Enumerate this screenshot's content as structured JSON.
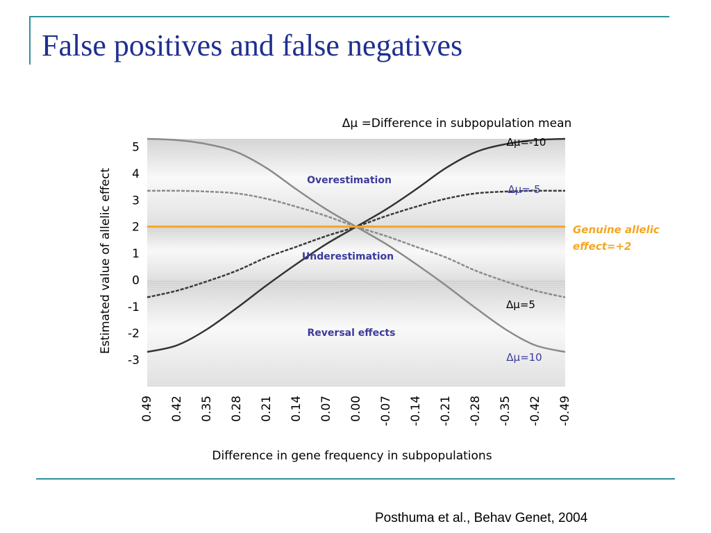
{
  "slide": {
    "title": "False positives and false negatives",
    "citation": "Posthuma et al., Behav Genet, 2004"
  },
  "chart_data": {
    "type": "line",
    "title": "Δμ =Difference in subpopulation mean",
    "xlabel": "Difference in gene frequency in subpopulations",
    "ylabel": "Estimated value of allelic effect",
    "x": [
      0.49,
      0.42,
      0.35,
      0.28,
      0.21,
      0.14,
      0.07,
      0.0,
      -0.07,
      -0.14,
      -0.21,
      -0.28,
      -0.35,
      -0.42,
      -0.49
    ],
    "x_tick_labels": [
      "0.49",
      "0.42",
      "0.35",
      "0.28",
      "0.21",
      "0.14",
      "0.07",
      "0.00",
      "-0.07",
      "-0.14",
      "-0.21",
      "-0.28",
      "-0.35",
      "-0.42",
      "-0.49"
    ],
    "y_ticks": [
      5,
      4,
      3,
      2,
      1,
      0,
      -1,
      -2,
      -3
    ],
    "ylim": [
      -4,
      5.3
    ],
    "grid": false,
    "series": [
      {
        "name": "Δμ=-10",
        "color": "#333333",
        "dash": false,
        "values": [
          -2.7,
          -2.45,
          -1.85,
          -1.05,
          -0.2,
          0.6,
          1.35,
          2.0,
          2.65,
          3.4,
          4.2,
          4.8,
          5.1,
          5.25,
          5.3
        ]
      },
      {
        "name": "Δμ=-5",
        "color": "#3a3a3a",
        "dash": true,
        "values": [
          -0.65,
          -0.4,
          -0.05,
          0.35,
          0.85,
          1.25,
          1.65,
          2.0,
          2.4,
          2.75,
          3.05,
          3.25,
          3.32,
          3.35,
          3.35
        ]
      },
      {
        "name": "Δμ=5",
        "color": "#8a8a8a",
        "dash": true,
        "values": [
          3.35,
          3.35,
          3.32,
          3.25,
          3.05,
          2.75,
          2.4,
          2.0,
          1.65,
          1.25,
          0.85,
          0.35,
          -0.05,
          -0.4,
          -0.65
        ]
      },
      {
        "name": "Δμ=10",
        "color": "#8a8a8a",
        "dash": false,
        "values": [
          5.3,
          5.25,
          5.1,
          4.8,
          4.2,
          3.4,
          2.65,
          2.0,
          1.35,
          0.6,
          -0.2,
          -1.05,
          -1.85,
          -2.45,
          -2.7
        ]
      }
    ],
    "reference_line": {
      "value": 2,
      "color": "#f5a623",
      "label_line1": "Genuine allelic",
      "label_line2": "effect=+2"
    },
    "regions": [
      {
        "label": "Overestimation",
        "y_from": 2,
        "y_to": 5.3
      },
      {
        "label": "Underestimation",
        "y_from": 0,
        "y_to": 2
      },
      {
        "label": "Reversal effects",
        "y_from": -4,
        "y_to": 0
      }
    ],
    "annotation_color": "#3b3b9a"
  }
}
